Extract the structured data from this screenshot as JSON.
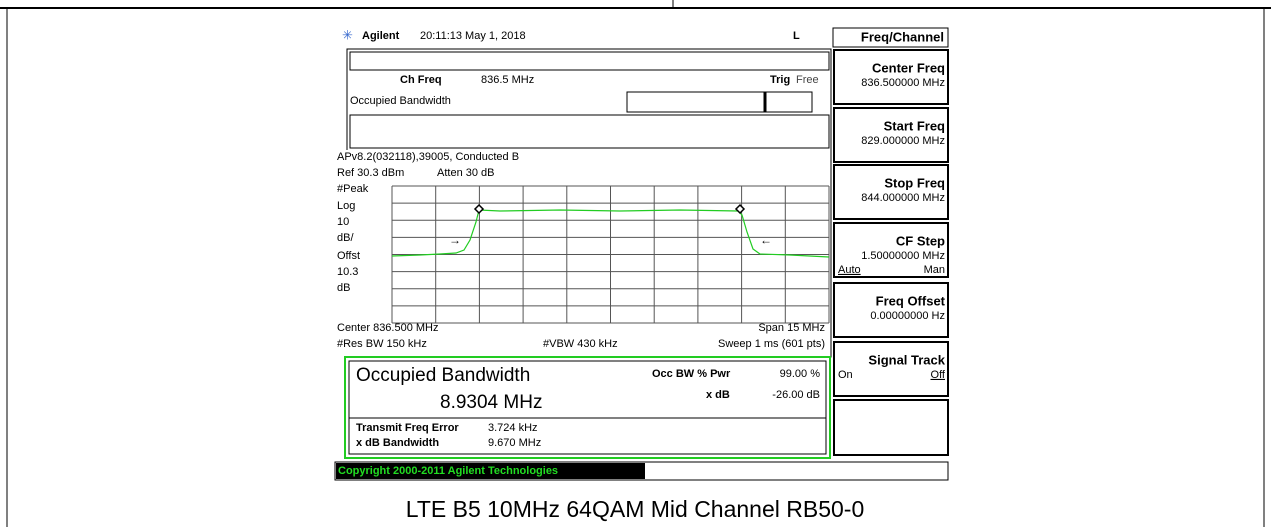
{
  "header": {
    "brand": "Agilent",
    "timestamp": "20:11:13  May 1, 2018",
    "indicator": "L"
  },
  "measurement": {
    "ch_freq_label": "Ch Freq",
    "ch_freq": "836.5 MHz",
    "trig_label": "Trig",
    "trig_mode": "Free",
    "name": "Occupied Bandwidth",
    "info": "APv8.2(032118),39005, Conducted B",
    "ref": "Ref 30.3 dBm",
    "atten": "Atten 30 dB",
    "scale_labels": [
      "#Peak",
      "Log",
      "10",
      "dB/",
      "Offst",
      "10.3",
      "dB"
    ],
    "center": "Center 836.500 MHz",
    "span": "Span 15 MHz",
    "res_bw": "#Res BW 150 kHz",
    "vbw": "#VBW 430 kHz",
    "sweep": "Sweep 1 ms (601 pts)"
  },
  "results": {
    "title": "Occupied Bandwidth",
    "value": "8.9304 MHz",
    "occ_bw_label": "Occ BW % Pwr",
    "occ_bw": "99.00 %",
    "xdb_label": "x dB",
    "xdb": "-26.00 dB",
    "tfe_label": "Transmit Freq Error",
    "tfe": "3.724 kHz",
    "xdb_bw_label": "x dB Bandwidth",
    "xdb_bw": "9.670 MHz"
  },
  "copyright": "Copyright 2000-2011 Agilent Technologies",
  "menu": {
    "title": "Freq/Channel",
    "keys": [
      {
        "label": "Center Freq",
        "value": "836.500000 MHz"
      },
      {
        "label": "Start Freq",
        "value": "829.000000 MHz"
      },
      {
        "label": "Stop Freq",
        "value": "844.000000 MHz"
      },
      {
        "label": "CF Step",
        "value": "1.50000000 MHz",
        "option_a": "Auto",
        "option_b": "Man"
      },
      {
        "label": "Freq Offset",
        "value": "0.00000000  Hz"
      },
      {
        "label": "Signal Track",
        "option_a": "On",
        "option_b": "Off"
      }
    ]
  },
  "caption": "LTE B5 10MHz 64QAM Mid Channel RB50-0"
}
